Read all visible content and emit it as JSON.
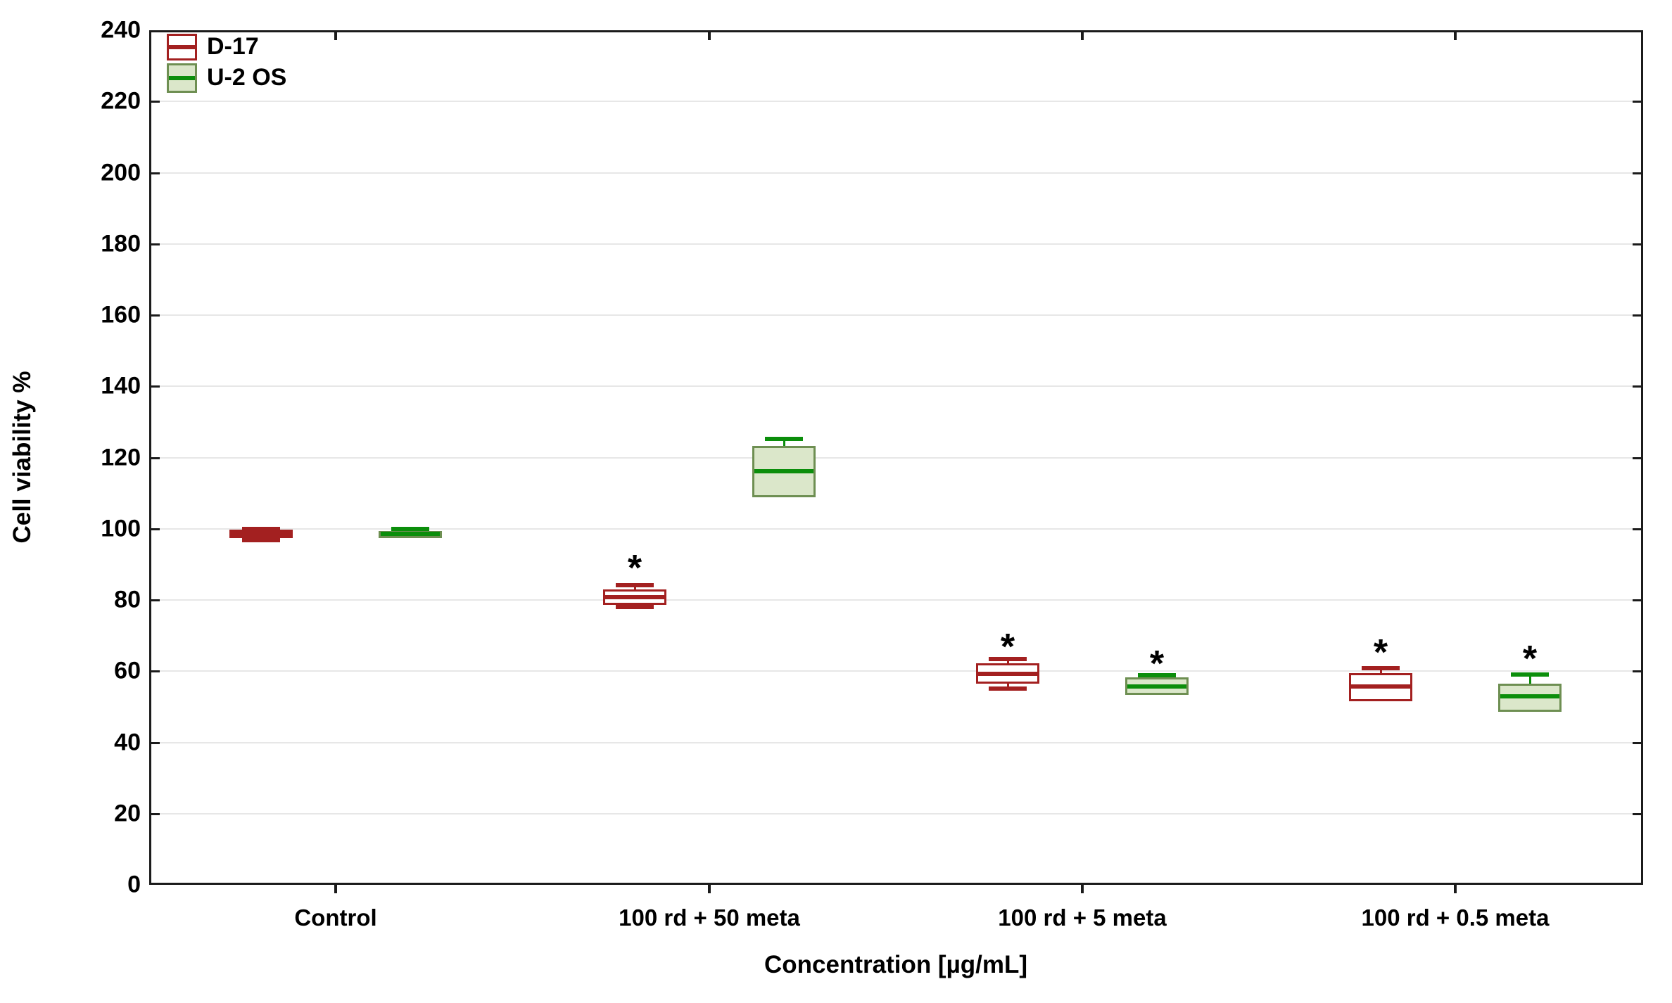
{
  "figure": {
    "background": "#ffffff",
    "text_color": "#000000"
  },
  "chart_data": {
    "type": "box",
    "title": "",
    "xlabel": "Concentration [µg/mL]",
    "ylabel": "Cell viability %",
    "ylim": [
      0,
      240
    ],
    "yticks": [
      0,
      20,
      40,
      60,
      80,
      100,
      120,
      140,
      160,
      180,
      200,
      220,
      240
    ],
    "categories": [
      "Control",
      "100 rd + 50 meta",
      "100 rd + 5 meta",
      "100 rd + 0.5 meta"
    ],
    "grid": "horizontal-light-gray",
    "legend_position": "top-left-inside",
    "significance_symbol": "*",
    "series": [
      {
        "name": "D-17",
        "box_fill": "#ffffff",
        "border_color": "#a32020",
        "line_color": "#a32020",
        "stats": [
          {
            "category": "Control",
            "min": 96.8,
            "q1": 97.3,
            "median": 98.5,
            "q3": 99.7,
            "max": 100.0
          },
          {
            "category": "100 rd + 50 meta",
            "min": 78.0,
            "q1": 78.7,
            "median": 80.8,
            "q3": 83.0,
            "max": 84.1
          },
          {
            "category": "100 rd + 5 meta",
            "min": 55.2,
            "q1": 56.4,
            "median": 59.2,
            "q3": 62.2,
            "max": 63.4
          },
          {
            "category": "100 rd + 0.5 meta",
            "min": null,
            "q1": 51.5,
            "median": 55.8,
            "q3": 59.4,
            "max": 60.9
          }
        ]
      },
      {
        "name": "U-2 OS",
        "box_fill": "#dbe7ca",
        "border_color": "#6e8f52",
        "line_color": "#0b8e0b",
        "stats": [
          {
            "category": "Control",
            "min": null,
            "q1": 97.4,
            "median": 98.6,
            "q3": 99.4,
            "max": 100.0
          },
          {
            "category": "100 rd + 50 meta",
            "min": null,
            "q1": 108.9,
            "median": 116.2,
            "q3": 123.3,
            "max": 125.2
          },
          {
            "category": "100 rd + 5 meta",
            "min": null,
            "q1": 53.3,
            "median": 55.8,
            "q3": 58.2,
            "max": 58.9
          },
          {
            "category": "100 rd + 0.5 meta",
            "min": null,
            "q1": 48.5,
            "median": 52.9,
            "q3": 56.4,
            "max": 59.1
          }
        ]
      }
    ],
    "annotations": [
      {
        "series": 0,
        "group": 1,
        "value": 90.0,
        "symbol": "*"
      },
      {
        "series": 0,
        "group": 2,
        "value": 68.0,
        "symbol": "*"
      },
      {
        "series": 1,
        "group": 2,
        "value": 63.3,
        "symbol": "*"
      },
      {
        "series": 0,
        "group": 3,
        "value": 66.3,
        "symbol": "*"
      },
      {
        "series": 1,
        "group": 3,
        "value": 64.5,
        "symbol": "*"
      }
    ]
  }
}
